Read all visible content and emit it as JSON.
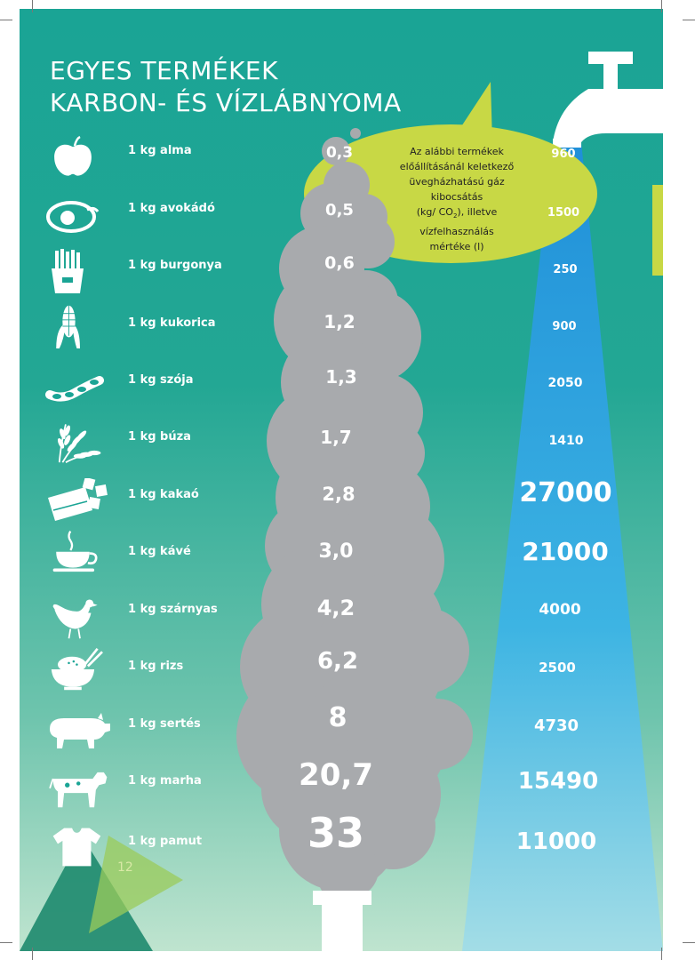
{
  "title": {
    "line1": "EGYES TERMÉKEK",
    "line2": "KARBON- ÉS VÍZLÁBNYOMA"
  },
  "bubble": {
    "line1": "Az alábbi termékek",
    "line2": "előállításánál keletkező",
    "line3": "üvegházhatású gáz kibocsátás",
    "line4_pre": "(kg/ CO",
    "line4_sub": "2",
    "line4_post": "), illetve",
    "line5": "vízfelhasználás",
    "line6": "mértéke (l)"
  },
  "rows": [
    {
      "label": "1 kg alma",
      "co2": "0,3",
      "water": "960",
      "icon": "apple-icon"
    },
    {
      "label": "1 kg avokádó",
      "co2": "0,5",
      "water": "1500",
      "icon": "avocado-icon"
    },
    {
      "label": "1 kg burgonya",
      "co2": "0,6",
      "water": "250",
      "icon": "fries-icon"
    },
    {
      "label": "1 kg kukorica",
      "co2": "1,2",
      "water": "900",
      "icon": "corn-icon"
    },
    {
      "label": "1 kg szója",
      "co2": "1,3",
      "water": "2050",
      "icon": "soybean-icon"
    },
    {
      "label": "1 kg búza",
      "co2": "1,7",
      "water": "1410",
      "icon": "wheat-icon"
    },
    {
      "label": "1 kg kakaó",
      "co2": "2,8",
      "water": "27000",
      "icon": "chocolate-icon"
    },
    {
      "label": "1 kg kávé",
      "co2": "3,0",
      "water": "21000",
      "icon": "coffee-cup-icon"
    },
    {
      "label": "1 kg szárnyas",
      "co2": "4,2",
      "water": "4000",
      "icon": "chicken-icon"
    },
    {
      "label": "1 kg rizs",
      "co2": "6,2",
      "water": "2500",
      "icon": "rice-bowl-icon"
    },
    {
      "label": "1 kg sertés",
      "co2": "8",
      "water": "4730",
      "icon": "pig-icon"
    },
    {
      "label": "1 kg marha",
      "co2": "20,7",
      "water": "15490",
      "icon": "cow-icon"
    },
    {
      "label": "1 kg pamut",
      "co2": "33",
      "water": "11000",
      "icon": "tshirt-icon"
    }
  ],
  "page_number": "12",
  "colors": {
    "background_top": "#1aa495",
    "background_bottom": "#bfe4cf",
    "smoke": "#a7a9ac",
    "bubble": "#c8d845",
    "water_top": "#1f8fd8",
    "water_bottom": "#9fdbe6"
  }
}
